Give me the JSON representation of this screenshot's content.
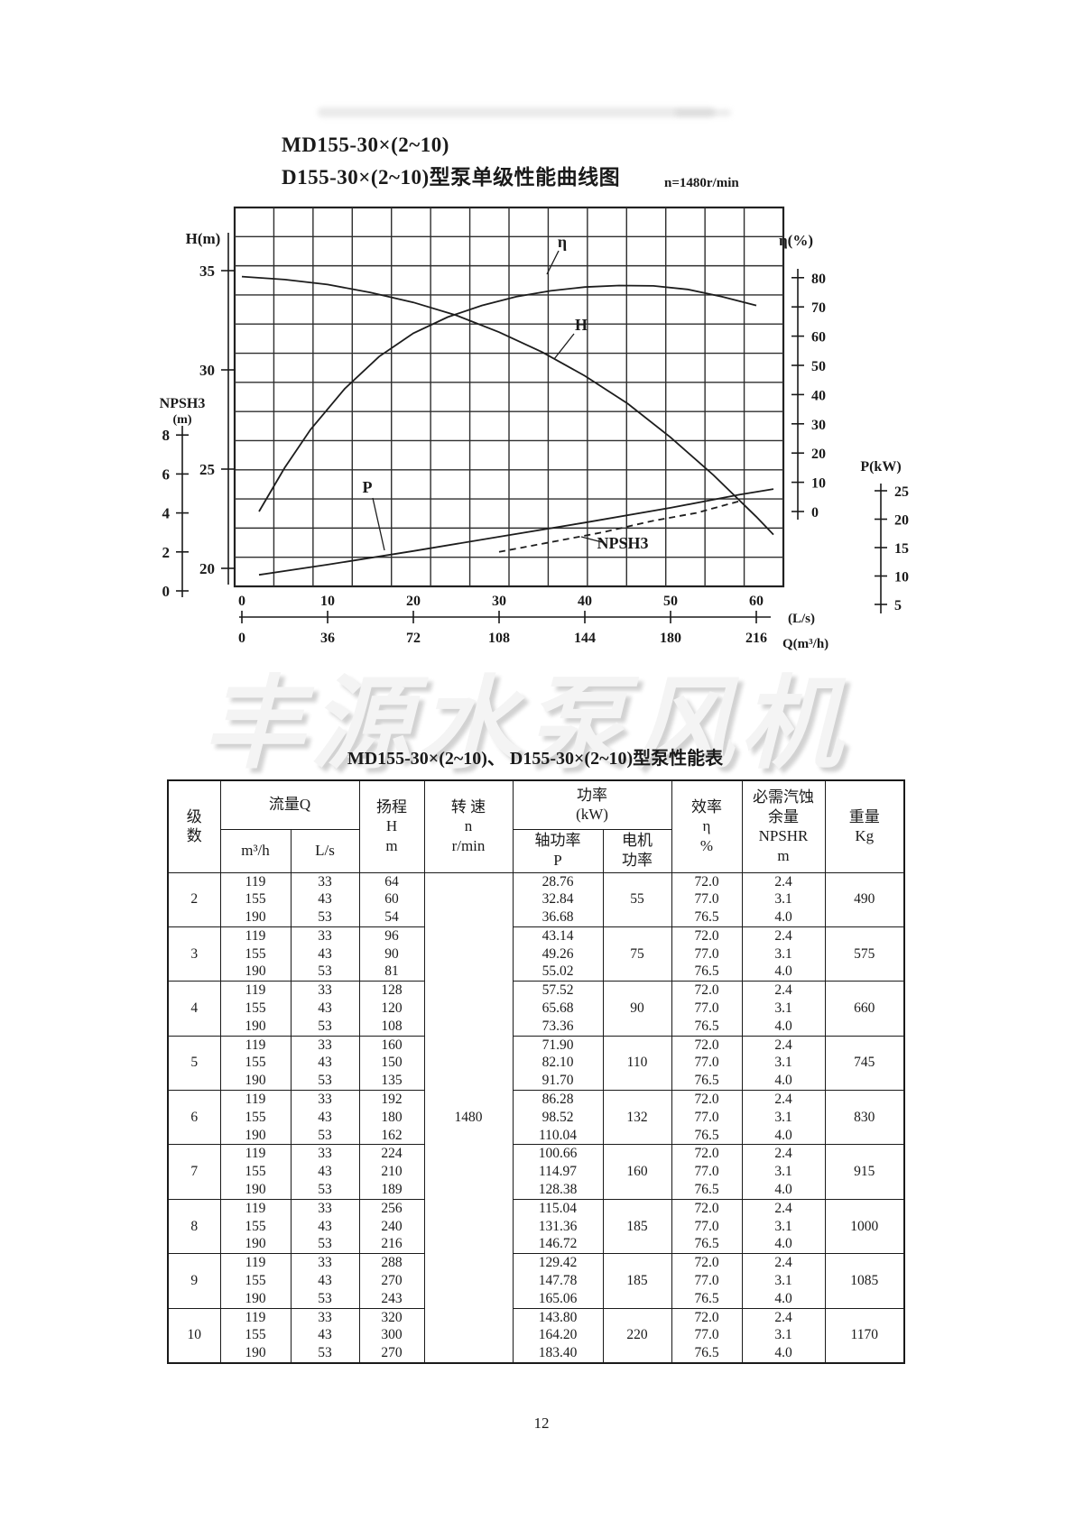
{
  "page": {
    "number": "12"
  },
  "watermark": {
    "text": "丰源水泵风机"
  },
  "chart_data": {
    "type": "line",
    "title_lines": [
      "MD155-30×(2~10)",
      "D155-30×(2~10)型泵单级性能曲线图"
    ],
    "speed_note": "n=1480r/min",
    "grid": {
      "cols": 14,
      "rows": 13
    },
    "x_axes": [
      {
        "label": "(L/s)",
        "unit": "L/s",
        "ticks": [
          0,
          10,
          20,
          30,
          40,
          50,
          60
        ]
      },
      {
        "label": "Q(m³/h)",
        "unit": "m³/h",
        "ticks": [
          0,
          36,
          72,
          108,
          144,
          180,
          216
        ]
      }
    ],
    "y_axes": [
      {
        "label": "H(m)",
        "ticks": [
          35,
          30,
          25,
          20
        ]
      },
      {
        "label": "NPSH3\n(m)",
        "ticks": [
          8,
          6,
          4,
          2,
          0
        ]
      },
      {
        "label": "η(%)",
        "ticks": [
          80,
          70,
          60,
          50,
          40,
          30,
          20,
          10,
          0
        ]
      },
      {
        "label": "P(kW)",
        "ticks": [
          25,
          20,
          15,
          10,
          5
        ]
      }
    ],
    "series": [
      {
        "name": "H",
        "y_axis": "H(m)",
        "x_unit": "L/s",
        "points": [
          [
            0,
            34.7
          ],
          [
            5,
            34.55
          ],
          [
            10,
            34.3
          ],
          [
            15,
            33.9
          ],
          [
            20,
            33.4
          ],
          [
            25,
            32.75
          ],
          [
            30,
            31.9
          ],
          [
            35,
            30.9
          ],
          [
            40,
            29.7
          ],
          [
            45,
            28.3
          ],
          [
            50,
            26.6
          ],
          [
            55,
            24.7
          ],
          [
            60,
            22.6
          ],
          [
            62,
            21.7
          ]
        ]
      },
      {
        "name": "η",
        "y_axis": "η(%)",
        "x_unit": "L/s",
        "points": [
          [
            2,
            0
          ],
          [
            5,
            15
          ],
          [
            8,
            28
          ],
          [
            12,
            42
          ],
          [
            16,
            53
          ],
          [
            20,
            61
          ],
          [
            24,
            66.5
          ],
          [
            28,
            70.5
          ],
          [
            32,
            73.5
          ],
          [
            36,
            75.5
          ],
          [
            40,
            76.8
          ],
          [
            44,
            77.3
          ],
          [
            48,
            77.2
          ],
          [
            52,
            76
          ],
          [
            56,
            73.5
          ],
          [
            60,
            70.5
          ]
        ]
      },
      {
        "name": "P",
        "y_axis": "P(kW)",
        "x_unit": "L/s",
        "points": [
          [
            2,
            10.2
          ],
          [
            10,
            12
          ],
          [
            20,
            14.4
          ],
          [
            30,
            16.9
          ],
          [
            40,
            19.4
          ],
          [
            50,
            22
          ],
          [
            58,
            24.3
          ],
          [
            62,
            25.3
          ]
        ]
      },
      {
        "name": "NPSH3",
        "y_axis": "NPSH3(m)",
        "x_unit": "L/s",
        "style": "dashed",
        "points": [
          [
            30,
            2.0
          ],
          [
            36,
            2.5
          ],
          [
            42,
            3.0
          ],
          [
            48,
            3.6
          ],
          [
            53,
            4.0
          ],
          [
            58,
            4.6
          ]
        ]
      }
    ]
  },
  "table": {
    "title": "MD155-30×(2~10)、 D155-30×(2~10)型泵性能表",
    "speed": "1480",
    "header": {
      "stage": "级\n数",
      "flow": "流量Q",
      "flow_m3h": "m³/h",
      "flow_ls": "L/s",
      "head": "扬程\nH\nm",
      "speed": "转  速\nn\nr/min",
      "power": "功率\n(kW)",
      "shaft_power": "轴功率\nP",
      "motor_power": "电机\n功率",
      "efficiency": "效率\nη\n%",
      "npshr": "必需汽蚀\n余量\nNPSHR\nm",
      "weight": "重量\nKg"
    },
    "rows": [
      {
        "stage": "2",
        "m3h": [
          "119",
          "155",
          "190"
        ],
        "ls": [
          "33",
          "43",
          "53"
        ],
        "head": [
          "64",
          "60",
          "54"
        ],
        "shaft_power": [
          "28.76",
          "32.84",
          "36.68"
        ],
        "motor_power": "55",
        "efficiency": [
          "72.0",
          "77.0",
          "76.5"
        ],
        "npshr": [
          "2.4",
          "3.1",
          "4.0"
        ],
        "weight": "490"
      },
      {
        "stage": "3",
        "m3h": [
          "119",
          "155",
          "190"
        ],
        "ls": [
          "33",
          "43",
          "53"
        ],
        "head": [
          "96",
          "90",
          "81"
        ],
        "shaft_power": [
          "43.14",
          "49.26",
          "55.02"
        ],
        "motor_power": "75",
        "efficiency": [
          "72.0",
          "77.0",
          "76.5"
        ],
        "npshr": [
          "2.4",
          "3.1",
          "4.0"
        ],
        "weight": "575"
      },
      {
        "stage": "4",
        "m3h": [
          "119",
          "155",
          "190"
        ],
        "ls": [
          "33",
          "43",
          "53"
        ],
        "head": [
          "128",
          "120",
          "108"
        ],
        "shaft_power": [
          "57.52",
          "65.68",
          "73.36"
        ],
        "motor_power": "90",
        "efficiency": [
          "72.0",
          "77.0",
          "76.5"
        ],
        "npshr": [
          "2.4",
          "3.1",
          "4.0"
        ],
        "weight": "660"
      },
      {
        "stage": "5",
        "m3h": [
          "119",
          "155",
          "190"
        ],
        "ls": [
          "33",
          "43",
          "53"
        ],
        "head": [
          "160",
          "150",
          "135"
        ],
        "shaft_power": [
          "71.90",
          "82.10",
          "91.70"
        ],
        "motor_power": "110",
        "efficiency": [
          "72.0",
          "77.0",
          "76.5"
        ],
        "npshr": [
          "2.4",
          "3.1",
          "4.0"
        ],
        "weight": "745"
      },
      {
        "stage": "6",
        "m3h": [
          "119",
          "155",
          "190"
        ],
        "ls": [
          "33",
          "43",
          "53"
        ],
        "head": [
          "192",
          "180",
          "162"
        ],
        "shaft_power": [
          "86.28",
          "98.52",
          "110.04"
        ],
        "motor_power": "132",
        "efficiency": [
          "72.0",
          "77.0",
          "76.5"
        ],
        "npshr": [
          "2.4",
          "3.1",
          "4.0"
        ],
        "weight": "830"
      },
      {
        "stage": "7",
        "m3h": [
          "119",
          "155",
          "190"
        ],
        "ls": [
          "33",
          "43",
          "53"
        ],
        "head": [
          "224",
          "210",
          "189"
        ],
        "shaft_power": [
          "100.66",
          "114.97",
          "128.38"
        ],
        "motor_power": "160",
        "efficiency": [
          "72.0",
          "77.0",
          "76.5"
        ],
        "npshr": [
          "2.4",
          "3.1",
          "4.0"
        ],
        "weight": "915"
      },
      {
        "stage": "8",
        "m3h": [
          "119",
          "155",
          "190"
        ],
        "ls": [
          "33",
          "43",
          "53"
        ],
        "head": [
          "256",
          "240",
          "216"
        ],
        "shaft_power": [
          "115.04",
          "131.36",
          "146.72"
        ],
        "motor_power": "185",
        "efficiency": [
          "72.0",
          "77.0",
          "76.5"
        ],
        "npshr": [
          "2.4",
          "3.1",
          "4.0"
        ],
        "weight": "1000"
      },
      {
        "stage": "9",
        "m3h": [
          "119",
          "155",
          "190"
        ],
        "ls": [
          "33",
          "43",
          "53"
        ],
        "head": [
          "288",
          "270",
          "243"
        ],
        "shaft_power": [
          "129.42",
          "147.78",
          "165.06"
        ],
        "motor_power": "185",
        "efficiency": [
          "72.0",
          "77.0",
          "76.5"
        ],
        "npshr": [
          "2.4",
          "3.1",
          "4.0"
        ],
        "weight": "1085"
      },
      {
        "stage": "10",
        "m3h": [
          "119",
          "155",
          "190"
        ],
        "ls": [
          "33",
          "43",
          "53"
        ],
        "head": [
          "320",
          "300",
          "270"
        ],
        "shaft_power": [
          "143.80",
          "164.20",
          "183.40"
        ],
        "motor_power": "220",
        "efficiency": [
          "72.0",
          "77.0",
          "76.5"
        ],
        "npshr": [
          "2.4",
          "3.1",
          "4.0"
        ],
        "weight": "1170"
      }
    ]
  }
}
